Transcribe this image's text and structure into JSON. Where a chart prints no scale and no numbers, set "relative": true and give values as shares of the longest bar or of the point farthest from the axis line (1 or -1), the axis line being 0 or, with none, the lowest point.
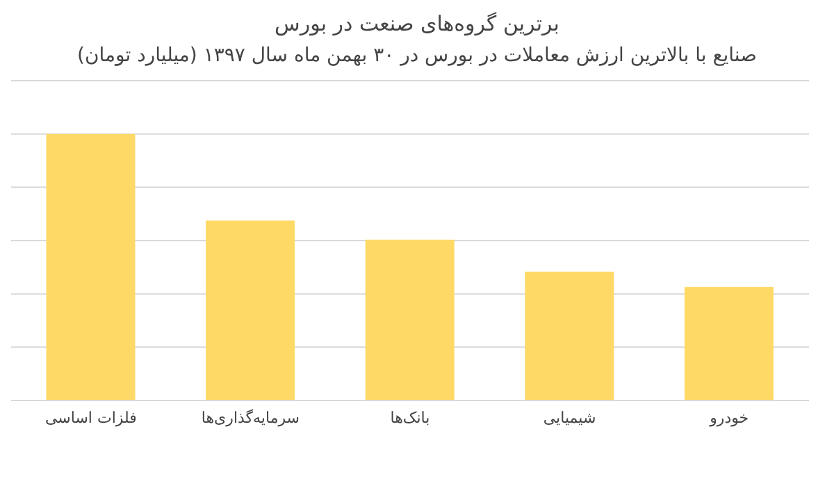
{
  "chart_data": {
    "type": "bar",
    "title": "برترین گروه‌های صنعت در بورس",
    "subtitle": "صنایع با بالاترین ارزش معاملات در بورس در ۳۰ بهمن ماه سال ۱۳۹۷ (میلیارد تومان)",
    "categories": [
      "فلزات اساسی",
      "سرمایه‌گذاری‌ها",
      "بانک‌ها",
      "شیمیایی",
      "خودرو"
    ],
    "values": [
      1,
      0.675,
      0.603,
      0.483,
      0.426
    ],
    "color": "#ffd966",
    "relative": true,
    "grid": "y"
  }
}
